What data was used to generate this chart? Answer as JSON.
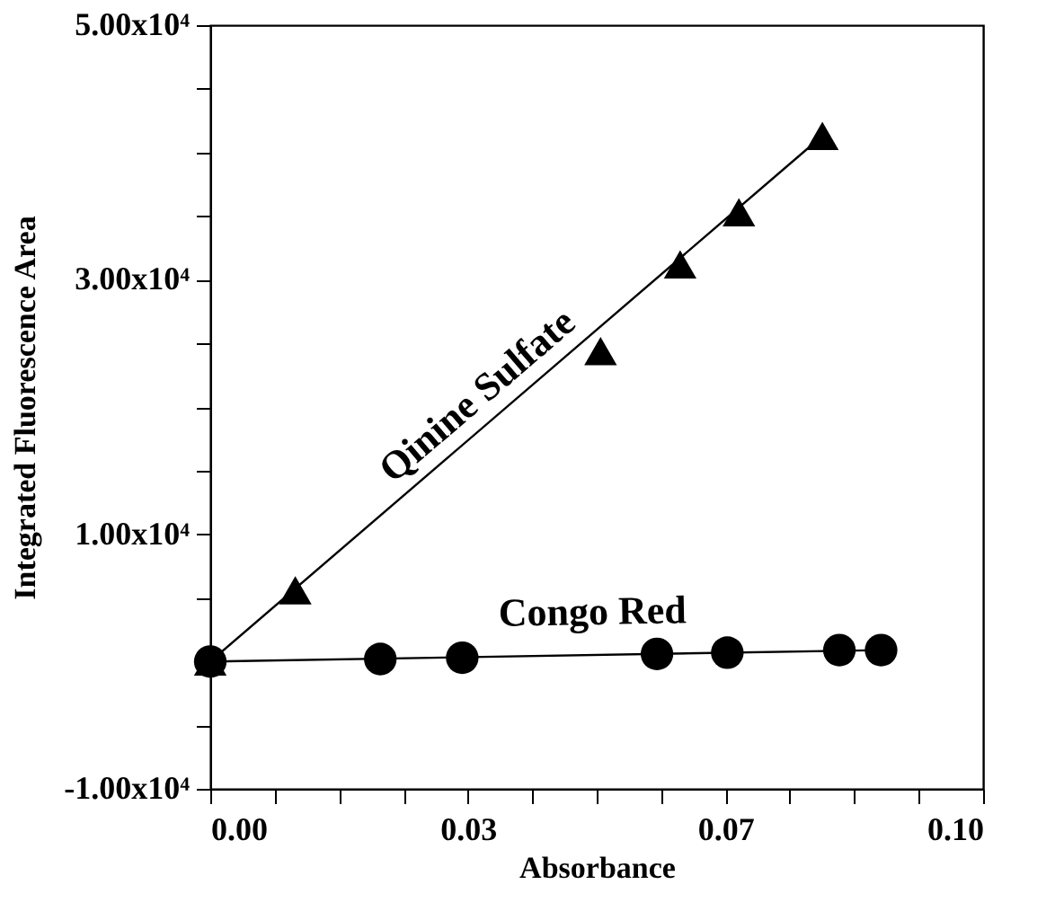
{
  "chart_data": {
    "type": "scatter",
    "xlabel": "Absorbance",
    "ylabel": "Integrated Fluorescence Area",
    "xlim": [
      0,
      0.1
    ],
    "ylim": [
      -10000,
      50000
    ],
    "xticks": [
      {
        "value": 0,
        "label": "0.00"
      },
      {
        "value": 0.00833,
        "label": null
      },
      {
        "value": 0.01667,
        "label": null
      },
      {
        "value": 0.025,
        "label": null
      },
      {
        "value": 0.03333,
        "label": "0.03"
      },
      {
        "value": 0.04167,
        "label": null
      },
      {
        "value": 0.05,
        "label": null
      },
      {
        "value": 0.05833,
        "label": null
      },
      {
        "value": 0.06667,
        "label": "0.07"
      },
      {
        "value": 0.075,
        "label": null
      },
      {
        "value": 0.08333,
        "label": null
      },
      {
        "value": 0.09167,
        "label": null
      },
      {
        "value": 0.1,
        "label": "0.10"
      }
    ],
    "yticks": [
      {
        "value": -10000,
        "label": "-1.00x10⁴"
      },
      {
        "value": -5000,
        "label": null
      },
      {
        "value": 0,
        "label": null
      },
      {
        "value": 5000,
        "label": null
      },
      {
        "value": 10000,
        "label": "1.00x10⁴"
      },
      {
        "value": 15000,
        "label": null
      },
      {
        "value": 20000,
        "label": null
      },
      {
        "value": 25000,
        "label": null
      },
      {
        "value": 30000,
        "label": "3.00x10⁴"
      },
      {
        "value": 35000,
        "label": null
      },
      {
        "value": 40000,
        "label": null
      },
      {
        "value": 45000,
        "label": null
      },
      {
        "value": 50000,
        "label": "5.00x10⁴"
      }
    ],
    "grid": false,
    "series": [
      {
        "name": "Qinine Sulfate",
        "marker": "triangle",
        "color": "#000000",
        "x": [
          0,
          0.011,
          0.0505,
          0.0608,
          0.0684,
          0.0792
        ],
        "values": [
          0,
          5600,
          24400,
          31200,
          35300,
          41300
        ]
      },
      {
        "type": "line",
        "line_style": "solid",
        "color": "#000000",
        "x": [
          0,
          0.0792
        ],
        "values": [
          0,
          41300
        ]
      },
      {
        "name": "Congo Red",
        "marker": "circle",
        "color": "#000000",
        "x": [
          0,
          0.022,
          0.0326,
          0.0578,
          0.0669,
          0.0814,
          0.0868
        ],
        "values": [
          0,
          200,
          300,
          600,
          700,
          900,
          900
        ]
      },
      {
        "type": "line",
        "line_style": "solid",
        "color": "#000000",
        "x": [
          0,
          0.0868
        ],
        "values": [
          0,
          900
        ]
      }
    ]
  }
}
